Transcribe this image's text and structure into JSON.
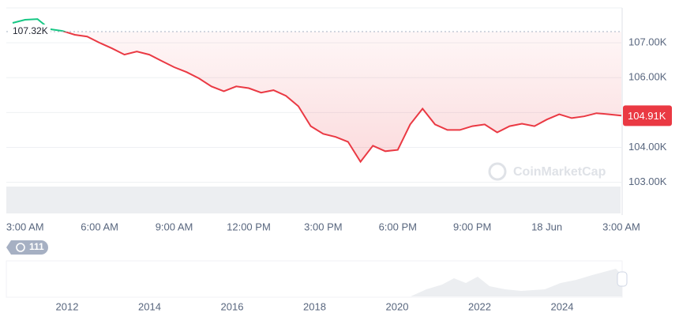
{
  "chart_data": {
    "type": "line",
    "x": [
      null,
      "3:00 AM",
      null,
      null,
      null,
      null,
      null,
      "6:00 AM",
      null,
      null,
      null,
      null,
      null,
      "9:00 AM",
      null,
      null,
      null,
      null,
      null,
      "12:00 PM",
      null,
      null,
      null,
      null,
      null,
      "3:00 PM",
      null,
      null,
      null,
      null,
      null,
      "6:00 PM",
      null,
      null,
      null,
      null,
      null,
      "9:00 PM",
      null,
      null,
      null,
      null,
      null,
      "18 Jun",
      null,
      null,
      null,
      null,
      null,
      "3:00 AM"
    ],
    "series": [
      {
        "color": "#ea3943",
        "color_above": "#16c784",
        "values": [
          107570,
          107660,
          107680,
          107390,
          107340,
          107230,
          107180,
          107000,
          106840,
          106660,
          106750,
          106660,
          106480,
          106300,
          106160,
          105980,
          105750,
          105610,
          105750,
          105700,
          105570,
          105640,
          105480,
          105180,
          104610,
          104390,
          104300,
          104160,
          103590,
          104050,
          103890,
          103930,
          104660,
          105110,
          104660,
          104500,
          104500,
          104610,
          104660,
          104430,
          104610,
          104680,
          104610,
          104800,
          104950,
          104840,
          104890,
          104980,
          104950,
          104910
        ]
      }
    ],
    "ylim": [
      102900,
      108000
    ],
    "yticks": [
      {
        "value": 103000,
        "label": "103.00K"
      },
      {
        "value": 104000,
        "label": "104.00K"
      },
      {
        "value": 105000,
        "label": "105.00K"
      },
      {
        "value": 106000,
        "label": "106.00K"
      },
      {
        "value": 107000,
        "label": "107.00K"
      }
    ],
    "grid": true,
    "reference": {
      "value": 107320,
      "label": "107.32K"
    },
    "current": {
      "value": 104910,
      "label": "104.91K"
    },
    "watermark": "CoinMarketCap",
    "badge": "111",
    "navigator_years": [
      "2012",
      "2014",
      "2016",
      "2018",
      "2020",
      "2022",
      "2024"
    ]
  }
}
